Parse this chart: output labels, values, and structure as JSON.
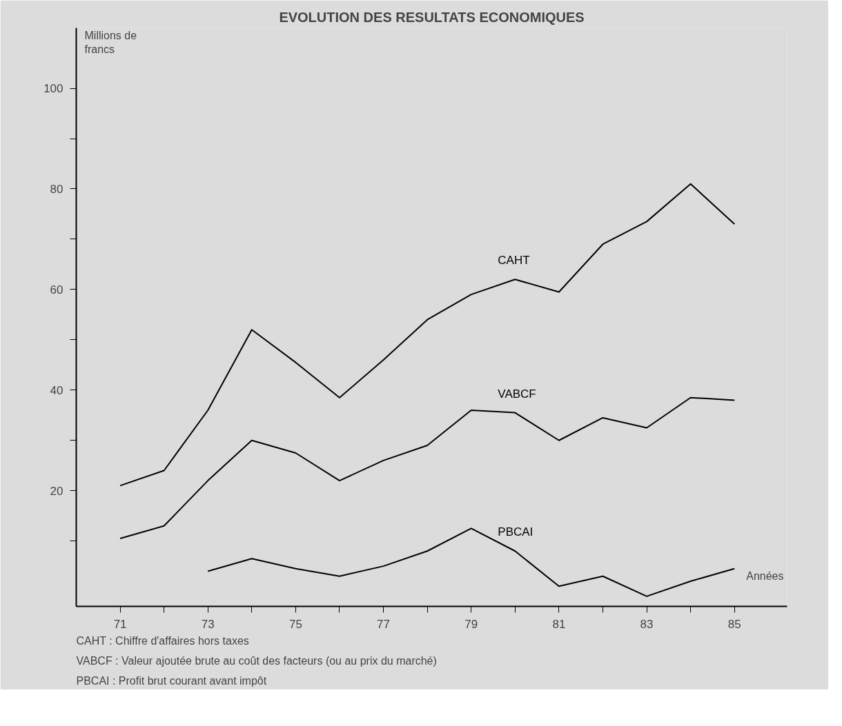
{
  "chart_data": {
    "type": "line",
    "title": "EVOLUTION DES RESULTATS ECONOMIQUES",
    "ylabel": "Millions de francs",
    "xlabel": "Années",
    "x": [
      71,
      72,
      73,
      74,
      75,
      76,
      77,
      78,
      79,
      80,
      81,
      82,
      83,
      84,
      85
    ],
    "series": [
      {
        "name": "CAHT",
        "color": "#000000",
        "values": [
          21,
          24,
          36,
          52,
          45.5,
          38.5,
          46,
          54,
          59,
          62,
          59.5,
          69,
          73.5,
          81,
          73
        ]
      },
      {
        "name": "VABCF",
        "color": "#000000",
        "values": [
          10.5,
          13,
          22,
          30,
          27.5,
          22,
          26,
          29,
          36,
          35.5,
          30,
          34.5,
          32.5,
          38.5,
          38
        ]
      },
      {
        "name": "PBCAI",
        "color": "#000000",
        "values": [
          null,
          null,
          4,
          6.5,
          4.5,
          3,
          5,
          8,
          12.5,
          8,
          1,
          3,
          -1,
          2,
          4.5
        ]
      }
    ],
    "xlim": [
      70,
      86.2
    ],
    "ylim": [
      -3,
      112
    ],
    "xticks": [
      {
        "value": 71,
        "label": "71"
      },
      {
        "value": 72,
        "label": null
      },
      {
        "value": 73,
        "label": "73"
      },
      {
        "value": 74,
        "label": null
      },
      {
        "value": 75,
        "label": "75"
      },
      {
        "value": 76,
        "label": null
      },
      {
        "value": 77,
        "label": "77"
      },
      {
        "value": 78,
        "label": null
      },
      {
        "value": 79,
        "label": "79"
      },
      {
        "value": 80,
        "label": null
      },
      {
        "value": 81,
        "label": "81"
      },
      {
        "value": 82,
        "label": null
      },
      {
        "value": 83,
        "label": "83"
      },
      {
        "value": 84,
        "label": null
      },
      {
        "value": 85,
        "label": "85"
      }
    ],
    "yticks": [
      {
        "value": 10,
        "label": null
      },
      20,
      {
        "value": 30,
        "label": null
      },
      40,
      {
        "value": 50,
        "label": null
      },
      60,
      {
        "value": 70,
        "label": null
      },
      80,
      {
        "value": 90,
        "label": null
      },
      100
    ],
    "grid": false,
    "marker": "none",
    "line_style": "solid",
    "annotations": [
      "CAHT      : Chiffre d'affaires hors taxes",
      "VABCF    : Valeur ajoutée brute au coût des facteurs (ou au prix du marché)",
      "PBCAI     : Profit brut courant avant impôt"
    ]
  }
}
